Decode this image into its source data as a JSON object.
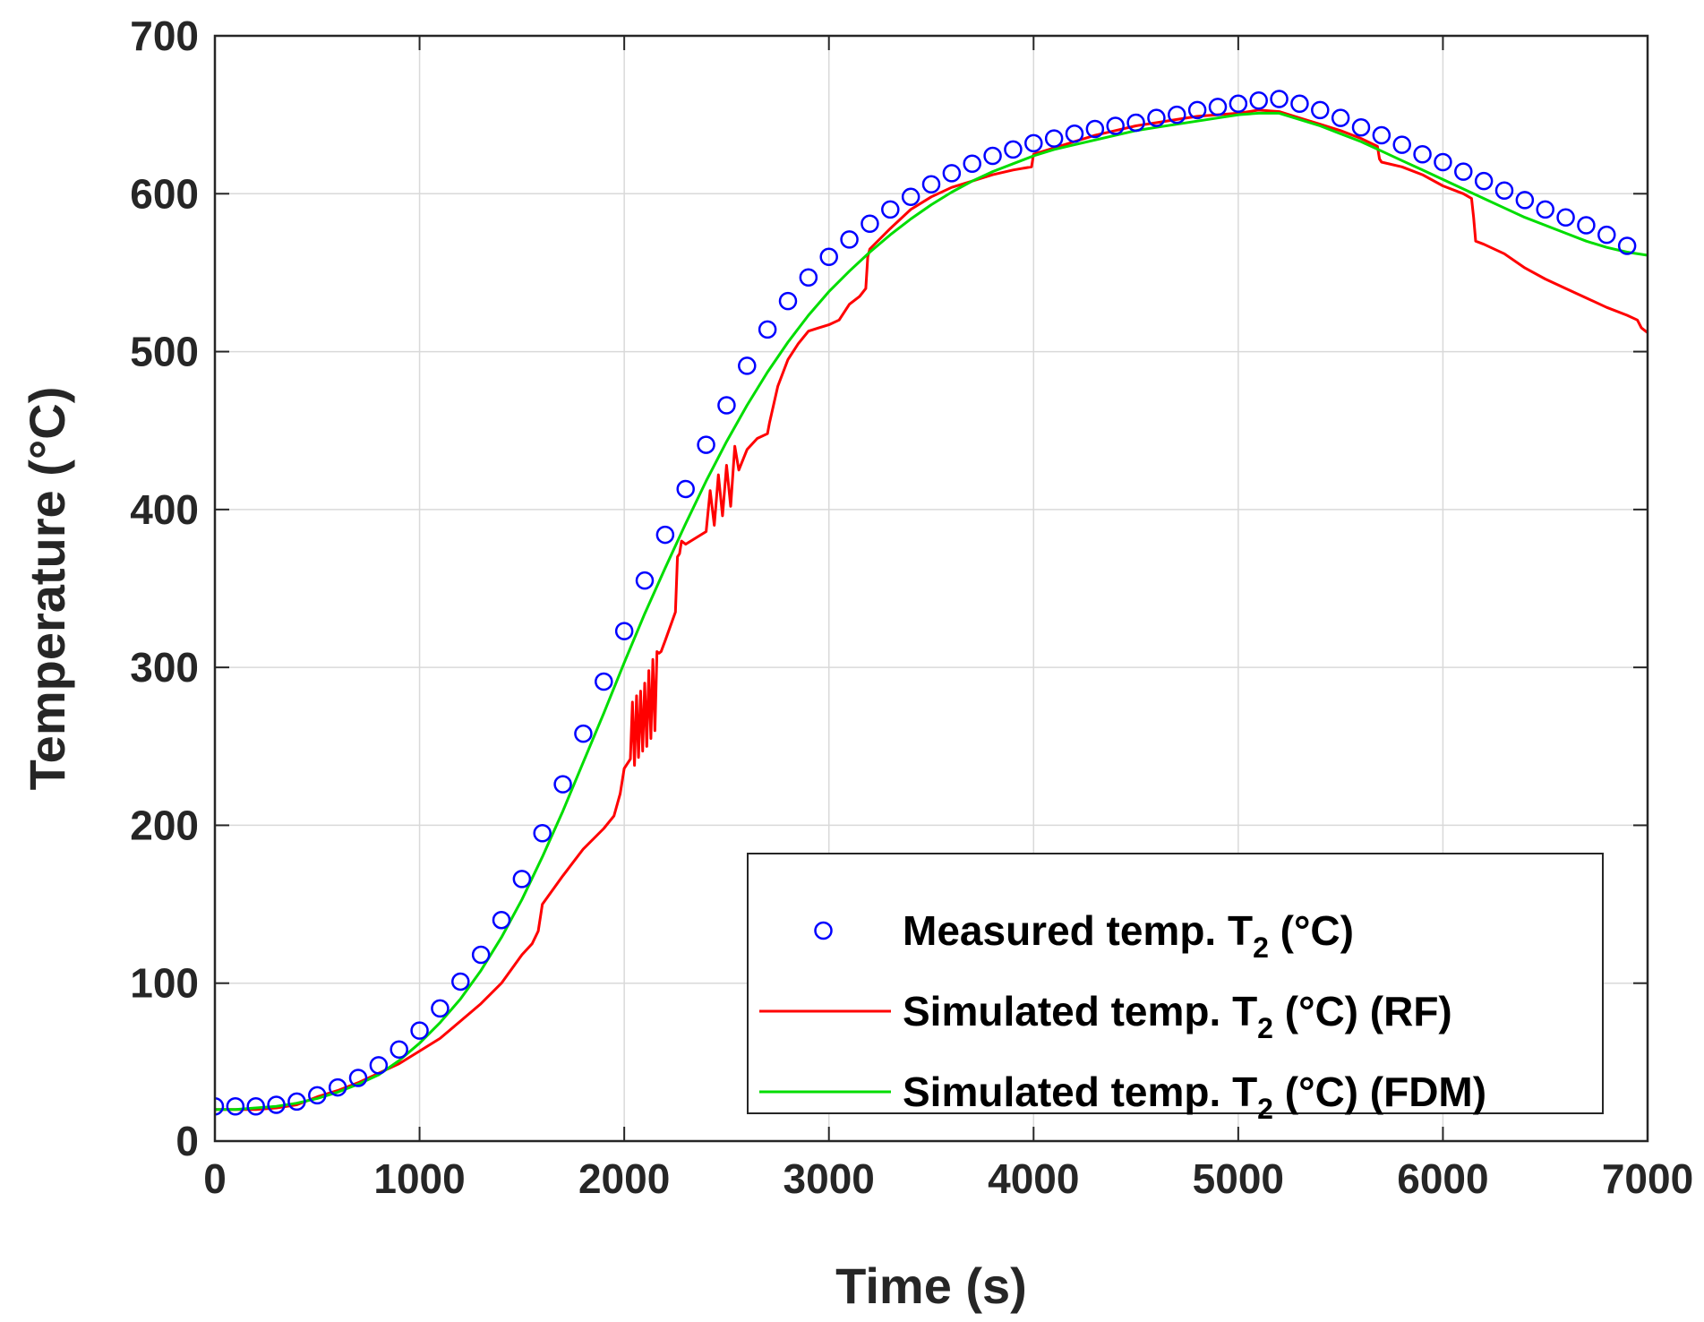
{
  "chart_data": {
    "type": "line",
    "title": "",
    "xlabel": "Time (s)",
    "ylabel": "Temperature (°C)",
    "xlim": [
      0,
      7000
    ],
    "ylim": [
      0,
      700
    ],
    "xticks": [
      0,
      1000,
      2000,
      3000,
      4000,
      5000,
      6000,
      7000
    ],
    "yticks": [
      0,
      100,
      200,
      300,
      400,
      500,
      600,
      700
    ],
    "xtick_labels": [
      "0",
      "1000",
      "2000",
      "3000",
      "4000",
      "5000",
      "6000",
      "7000"
    ],
    "ytick_labels": [
      "0",
      "100",
      "200",
      "300",
      "400",
      "500",
      "600",
      "700"
    ],
    "grid": true,
    "legend_position": "bottom-right",
    "series": [
      {
        "name": "Measured temp. T2 (°C)",
        "legend_main": "Measured temp. T",
        "legend_sub": "2",
        "legend_suffix": " (°C)",
        "style": "markers",
        "marker": "circle",
        "color": "#0000ff",
        "x": [
          0,
          100,
          200,
          300,
          400,
          500,
          600,
          700,
          800,
          900,
          1000,
          1100,
          1200,
          1300,
          1400,
          1500,
          1600,
          1700,
          1800,
          1900,
          2000,
          2100,
          2200,
          2300,
          2400,
          2500,
          2600,
          2700,
          2800,
          2900,
          3000,
          3100,
          3200,
          3300,
          3400,
          3500,
          3600,
          3700,
          3800,
          3900,
          4000,
          4100,
          4200,
          4300,
          4400,
          4500,
          4600,
          4700,
          4800,
          4900,
          5000,
          5100,
          5200,
          5300,
          5400,
          5500,
          5600,
          5700,
          5800,
          5900,
          6000,
          6100,
          6200,
          6300,
          6400,
          6500,
          6600,
          6700,
          6800,
          6900
        ],
        "y": [
          22,
          22,
          22,
          23,
          25,
          29,
          34,
          40,
          48,
          58,
          70,
          84,
          101,
          118,
          140,
          166,
          195,
          226,
          258,
          291,
          323,
          355,
          384,
          413,
          441,
          466,
          491,
          514,
          532,
          547,
          560,
          571,
          581,
          590,
          598,
          606,
          613,
          619,
          624,
          628,
          632,
          635,
          638,
          641,
          643,
          645,
          648,
          650,
          653,
          655,
          657,
          659,
          660,
          657,
          653,
          648,
          642,
          637,
          631,
          625,
          620,
          614,
          608,
          602,
          596,
          590,
          585,
          580,
          574,
          567
        ]
      },
      {
        "name": "Simulated temp. T2 (°C) (RF)",
        "legend_main": "Simulated temp. T",
        "legend_sub": "2",
        "legend_suffix": " (°C) (RF)",
        "style": "line",
        "color": "#ff0000",
        "x": [
          0,
          100,
          200,
          300,
          400,
          500,
          600,
          700,
          800,
          900,
          1000,
          1100,
          1200,
          1300,
          1400,
          1500,
          1550,
          1580,
          1600,
          1700,
          1800,
          1900,
          1950,
          1980,
          2000,
          2030,
          2040,
          2050,
          2060,
          2070,
          2080,
          2090,
          2100,
          2110,
          2120,
          2130,
          2140,
          2150,
          2160,
          2170,
          2180,
          2200,
          2250,
          2260,
          2270,
          2280,
          2300,
          2400,
          2420,
          2440,
          2460,
          2480,
          2500,
          2520,
          2540,
          2560,
          2600,
          2650,
          2700,
          2710,
          2750,
          2800,
          2850,
          2900,
          2950,
          3000,
          3050,
          3100,
          3150,
          3180,
          3190,
          3200,
          3300,
          3400,
          3500,
          3600,
          3700,
          3800,
          3900,
          3990,
          4000,
          4100,
          4200,
          4300,
          4400,
          4500,
          4600,
          4700,
          4800,
          4900,
          5000,
          5100,
          5200,
          5300,
          5400,
          5500,
          5600,
          5680,
          5690,
          5700,
          5800,
          5900,
          6000,
          6100,
          6140,
          6150,
          6160,
          6200,
          6300,
          6400,
          6500,
          6600,
          6700,
          6800,
          6900,
          6950,
          6970,
          7000
        ],
        "y": [
          20,
          20,
          20,
          21,
          23,
          28,
          32,
          37,
          43,
          49,
          57,
          65,
          76,
          87,
          100,
          118,
          125,
          133,
          150,
          168,
          185,
          198,
          206,
          220,
          236,
          242,
          278,
          238,
          282,
          243,
          285,
          247,
          290,
          250,
          298,
          255,
          305,
          260,
          310,
          309,
          310,
          317,
          335,
          370,
          372,
          380,
          378,
          386,
          412,
          390,
          422,
          396,
          428,
          402,
          440,
          425,
          438,
          445,
          448,
          455,
          478,
          495,
          505,
          513,
          515,
          517,
          520,
          530,
          535,
          540,
          560,
          565,
          578,
          590,
          598,
          604,
          608,
          612,
          615,
          617,
          625,
          629,
          633,
          637,
          640,
          643,
          645,
          647,
          649,
          650,
          651,
          653,
          652,
          648,
          644,
          640,
          635,
          630,
          622,
          620,
          617,
          612,
          605,
          600,
          597,
          585,
          570,
          568,
          562,
          553,
          546,
          540,
          534,
          528,
          523,
          520,
          515,
          512
        ]
      },
      {
        "name": "Simulated temp. T2 (°C) (FDM)",
        "legend_main": "Simulated temp. T",
        "legend_sub": "2",
        "legend_suffix": " (°C) (FDM)",
        "style": "line",
        "color": "#00dd00",
        "x": [
          0,
          100,
          200,
          300,
          400,
          500,
          600,
          700,
          800,
          900,
          1000,
          1100,
          1200,
          1300,
          1400,
          1500,
          1600,
          1700,
          1800,
          1900,
          2000,
          2100,
          2200,
          2300,
          2400,
          2500,
          2600,
          2700,
          2800,
          2900,
          3000,
          3100,
          3200,
          3300,
          3400,
          3500,
          3600,
          3700,
          3800,
          3900,
          4000,
          4100,
          4200,
          4300,
          4400,
          4500,
          4600,
          4700,
          4800,
          4900,
          5000,
          5100,
          5200,
          5300,
          5400,
          5500,
          5600,
          5700,
          5800,
          5900,
          6000,
          6100,
          6200,
          6300,
          6400,
          6500,
          6600,
          6700,
          6800,
          6900,
          7000
        ],
        "y": [
          20,
          20,
          21,
          22,
          24,
          27,
          31,
          36,
          42,
          51,
          62,
          75,
          90,
          108,
          129,
          153,
          180,
          209,
          240,
          271,
          303,
          334,
          363,
          391,
          418,
          443,
          466,
          487,
          506,
          523,
          538,
          551,
          563,
          574,
          584,
          593,
          601,
          608,
          614,
          619,
          624,
          628,
          631,
          634,
          637,
          640,
          642,
          644,
          646,
          648,
          650,
          651,
          651,
          647,
          643,
          638,
          633,
          627,
          621,
          615,
          609,
          603,
          597,
          591,
          585,
          580,
          575,
          570,
          566,
          563,
          561
        ]
      }
    ]
  }
}
